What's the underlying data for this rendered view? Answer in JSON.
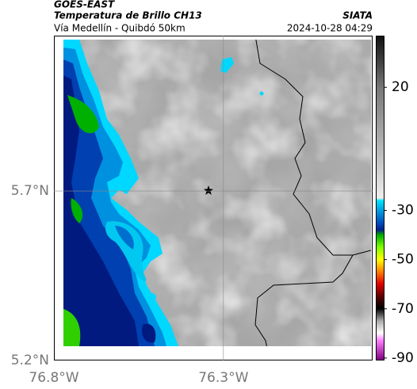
{
  "map": {
    "source": "GOES-EAST",
    "title": "Temperatura de Brillo CH13",
    "subtitle": "Vía Medellín - Quibdó 50km",
    "credit": "SIATA",
    "timestamp": "2024-10-28 04:29",
    "lon_range": [
      -76.8,
      -75.86
    ],
    "lat_range": [
      5.2,
      6.158
    ],
    "lon_ticks": [
      {
        "value": -76.8,
        "label": "76.8°W"
      },
      {
        "value": -76.3,
        "label": "76.3°W"
      }
    ],
    "lat_ticks": [
      {
        "value": 5.7,
        "label": "5.7°N"
      },
      {
        "value": 5.2,
        "label": "5.2°N"
      }
    ],
    "grid": true,
    "colorbar": {
      "lim": [
        -91,
        41
      ],
      "ticks": [
        20,
        -30,
        -50,
        -70,
        -90
      ],
      "stops": [
        {
          "value": 41,
          "color": "#111111"
        },
        {
          "value": 30,
          "color": "#444444"
        },
        {
          "value": 20,
          "color": "#777777"
        },
        {
          "value": 0,
          "color": "#aaaaaa"
        },
        {
          "value": -25,
          "color": "#eeeeee"
        },
        {
          "value": -26,
          "color": "#00e5ff"
        },
        {
          "value": -30,
          "color": "#00a0e0"
        },
        {
          "value": -35,
          "color": "#0050c0"
        },
        {
          "value": -38,
          "color": "#00208a"
        },
        {
          "value": -40,
          "color": "#00aa00"
        },
        {
          "value": -45,
          "color": "#80ff00"
        },
        {
          "value": -50,
          "color": "#ffff00"
        },
        {
          "value": -55,
          "color": "#ff8000"
        },
        {
          "value": -60,
          "color": "#e00000"
        },
        {
          "value": -65,
          "color": "#600000"
        },
        {
          "value": -70,
          "color": "#000000"
        },
        {
          "value": -75,
          "color": "#aaaaaa"
        },
        {
          "value": -80,
          "color": "#ffffff"
        },
        {
          "value": -83,
          "color": "#ff80ff"
        },
        {
          "value": -91,
          "color": "#800080"
        }
      ]
    }
  }
}
